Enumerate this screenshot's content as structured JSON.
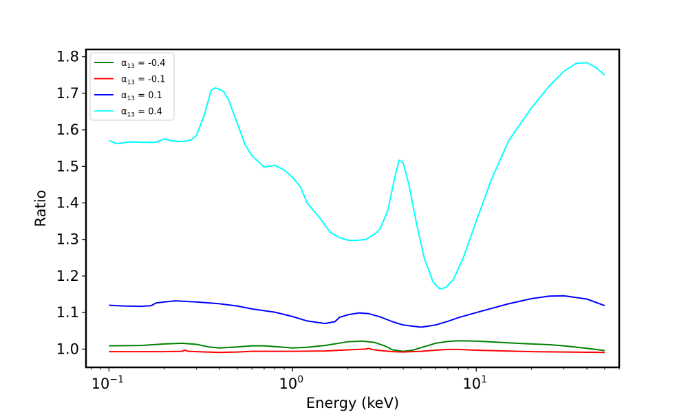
{
  "chart_data": {
    "type": "line",
    "title": "",
    "xlabel": "Energy (keV)",
    "ylabel": "Ratio",
    "xscale": "log",
    "xlim": [
      0.075,
      60
    ],
    "ylim": [
      0.95,
      1.82
    ],
    "x_ticks": [
      {
        "value": 0.1,
        "base": "10",
        "exp": "−1"
      },
      {
        "value": 1,
        "base": "10",
        "exp": "0"
      },
      {
        "value": 10,
        "base": "10",
        "exp": "1"
      }
    ],
    "y_ticks": [
      "1.0",
      "1.1",
      "1.2",
      "1.3",
      "1.4",
      "1.5",
      "1.6",
      "1.7",
      "1.8"
    ],
    "legend_location": "top-left",
    "series": [
      {
        "name": "α13 = -0.4",
        "legend_prefix": "α",
        "legend_sub": "13",
        "legend_suffix": " = -0.4",
        "color": "#008000",
        "points": [
          [
            0.1,
            1.009
          ],
          [
            0.15,
            1.01
          ],
          [
            0.2,
            1.014
          ],
          [
            0.25,
            1.016
          ],
          [
            0.3,
            1.013
          ],
          [
            0.35,
            1.006
          ],
          [
            0.4,
            1.003
          ],
          [
            0.5,
            1.006
          ],
          [
            0.6,
            1.009
          ],
          [
            0.7,
            1.009
          ],
          [
            0.8,
            1.007
          ],
          [
            1.0,
            1.003
          ],
          [
            1.2,
            1.005
          ],
          [
            1.5,
            1.01
          ],
          [
            2.0,
            1.02
          ],
          [
            2.4,
            1.022
          ],
          [
            2.8,
            1.018
          ],
          [
            3.2,
            1.008
          ],
          [
            3.5,
            0.998
          ],
          [
            4.0,
            0.994
          ],
          [
            4.5,
            0.997
          ],
          [
            5.0,
            1.004
          ],
          [
            6.0,
            1.016
          ],
          [
            7.0,
            1.021
          ],
          [
            8.0,
            1.023
          ],
          [
            10,
            1.022
          ],
          [
            15,
            1.017
          ],
          [
            20,
            1.014
          ],
          [
            25,
            1.012
          ],
          [
            30,
            1.009
          ],
          [
            40,
            1.002
          ],
          [
            50,
            0.996
          ]
        ]
      },
      {
        "name": "α13 = -0.1",
        "legend_prefix": "α",
        "legend_sub": "13",
        "legend_suffix": " = -0.1",
        "color": "#ff0000",
        "points": [
          [
            0.1,
            0.993
          ],
          [
            0.2,
            0.993
          ],
          [
            0.25,
            0.994
          ],
          [
            0.26,
            0.997
          ],
          [
            0.27,
            0.994
          ],
          [
            0.3,
            0.993
          ],
          [
            0.4,
            0.991
          ],
          [
            0.5,
            0.992
          ],
          [
            0.6,
            0.994
          ],
          [
            1.0,
            0.994
          ],
          [
            1.5,
            0.995
          ],
          [
            2.0,
            0.998
          ],
          [
            2.5,
            1.0
          ],
          [
            2.6,
            1.002
          ],
          [
            2.7,
            0.999
          ],
          [
            3.0,
            0.996
          ],
          [
            3.5,
            0.993
          ],
          [
            4.0,
            0.992
          ],
          [
            5.0,
            0.994
          ],
          [
            6.0,
            0.997
          ],
          [
            7.0,
            0.999
          ],
          [
            8.0,
            0.999
          ],
          [
            10,
            0.997
          ],
          [
            20,
            0.993
          ],
          [
            30,
            0.992
          ],
          [
            50,
            0.991
          ]
        ]
      },
      {
        "name": "α13 = 0.1",
        "legend_prefix": "α",
        "legend_sub": "13",
        "legend_suffix": " = 0.1",
        "color": "#0000ff",
        "points": [
          [
            0.1,
            1.12
          ],
          [
            0.12,
            1.118
          ],
          [
            0.15,
            1.117
          ],
          [
            0.17,
            1.119
          ],
          [
            0.18,
            1.126
          ],
          [
            0.2,
            1.129
          ],
          [
            0.23,
            1.132
          ],
          [
            0.3,
            1.129
          ],
          [
            0.4,
            1.124
          ],
          [
            0.5,
            1.118
          ],
          [
            0.6,
            1.11
          ],
          [
            0.8,
            1.101
          ],
          [
            1.0,
            1.089
          ],
          [
            1.2,
            1.077
          ],
          [
            1.5,
            1.07
          ],
          [
            1.7,
            1.075
          ],
          [
            1.8,
            1.087
          ],
          [
            2.0,
            1.094
          ],
          [
            2.3,
            1.099
          ],
          [
            2.6,
            1.097
          ],
          [
            3.0,
            1.088
          ],
          [
            3.5,
            1.075
          ],
          [
            4.0,
            1.066
          ],
          [
            5.0,
            1.06
          ],
          [
            6.0,
            1.066
          ],
          [
            7.0,
            1.076
          ],
          [
            8.0,
            1.086
          ],
          [
            10,
            1.1
          ],
          [
            15,
            1.124
          ],
          [
            20,
            1.138
          ],
          [
            25,
            1.145
          ],
          [
            30,
            1.146
          ],
          [
            40,
            1.137
          ],
          [
            50,
            1.119
          ]
        ]
      },
      {
        "name": "α13 = 0.4",
        "legend_prefix": "α",
        "legend_sub": "13",
        "legend_suffix": " = 0.4",
        "color": "#00ffff",
        "points": [
          [
            0.1,
            1.571
          ],
          [
            0.11,
            1.562
          ],
          [
            0.13,
            1.567
          ],
          [
            0.15,
            1.566
          ],
          [
            0.18,
            1.566
          ],
          [
            0.2,
            1.575
          ],
          [
            0.22,
            1.57
          ],
          [
            0.25,
            1.568
          ],
          [
            0.28,
            1.572
          ],
          [
            0.3,
            1.585
          ],
          [
            0.33,
            1.64
          ],
          [
            0.36,
            1.708
          ],
          [
            0.38,
            1.715
          ],
          [
            0.42,
            1.706
          ],
          [
            0.45,
            1.68
          ],
          [
            0.5,
            1.618
          ],
          [
            0.55,
            1.56
          ],
          [
            0.6,
            1.53
          ],
          [
            0.7,
            1.498
          ],
          [
            0.8,
            1.503
          ],
          [
            0.9,
            1.49
          ],
          [
            1.0,
            1.47
          ],
          [
            1.1,
            1.445
          ],
          [
            1.2,
            1.4
          ],
          [
            1.4,
            1.36
          ],
          [
            1.6,
            1.32
          ],
          [
            1.8,
            1.305
          ],
          [
            2.0,
            1.298
          ],
          [
            2.2,
            1.297
          ],
          [
            2.5,
            1.3
          ],
          [
            2.8,
            1.315
          ],
          [
            3.0,
            1.33
          ],
          [
            3.3,
            1.38
          ],
          [
            3.6,
            1.47
          ],
          [
            3.8,
            1.517
          ],
          [
            4.0,
            1.51
          ],
          [
            4.3,
            1.45
          ],
          [
            4.7,
            1.35
          ],
          [
            5.2,
            1.25
          ],
          [
            5.8,
            1.185
          ],
          [
            6.3,
            1.165
          ],
          [
            6.8,
            1.168
          ],
          [
            7.5,
            1.19
          ],
          [
            8.5,
            1.25
          ],
          [
            10,
            1.35
          ],
          [
            12,
            1.46
          ],
          [
            15,
            1.57
          ],
          [
            20,
            1.66
          ],
          [
            25,
            1.72
          ],
          [
            30,
            1.76
          ],
          [
            35,
            1.782
          ],
          [
            40,
            1.784
          ],
          [
            45,
            1.77
          ],
          [
            50,
            1.75
          ]
        ]
      }
    ]
  }
}
